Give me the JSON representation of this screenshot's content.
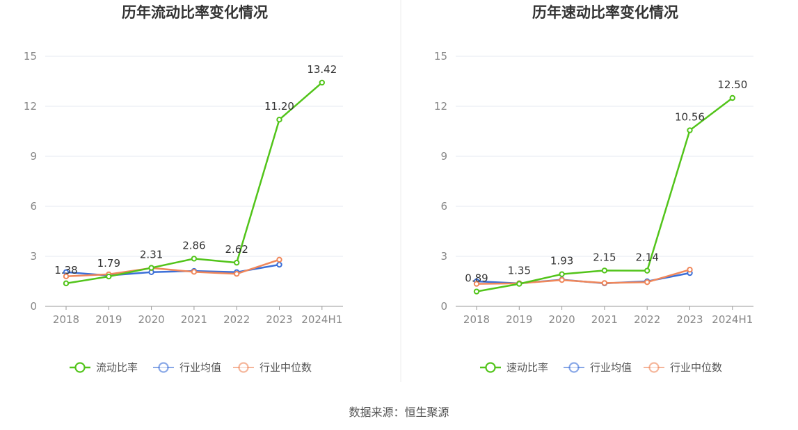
{
  "chart_data": [
    {
      "type": "line",
      "title": "历年流动比率变化情况",
      "categories": [
        "2018",
        "2019",
        "2020",
        "2021",
        "2022",
        "2023",
        "2024H1"
      ],
      "ylim": [
        0,
        15
      ],
      "yticks": [
        0,
        3,
        6,
        9,
        12,
        15
      ],
      "grid": true,
      "legend_position": "bottom",
      "series": [
        {
          "name": "流动比率",
          "color": "#52c41a",
          "values": [
            1.38,
            1.79,
            2.31,
            2.86,
            2.62,
            11.2,
            13.42
          ],
          "labels": [
            "1.38",
            "1.79",
            "2.31",
            "2.86",
            "2.62",
            "11.20",
            "13.42"
          ]
        },
        {
          "name": "行业均值",
          "color": "#3b6fd8",
          "values": [
            2.05,
            1.85,
            2.05,
            2.12,
            2.05,
            2.5,
            null
          ]
        },
        {
          "name": "行业中位数",
          "color": "#f0875a",
          "values": [
            1.8,
            1.92,
            2.3,
            2.07,
            1.95,
            2.8,
            null
          ]
        }
      ]
    },
    {
      "type": "line",
      "title": "历年速动比率变化情况",
      "categories": [
        "2018",
        "2019",
        "2020",
        "2021",
        "2022",
        "2023",
        "2024H1"
      ],
      "ylim": [
        0,
        15
      ],
      "yticks": [
        0,
        3,
        6,
        9,
        12,
        15
      ],
      "grid": true,
      "legend_position": "bottom",
      "series": [
        {
          "name": "速动比率",
          "color": "#52c41a",
          "values": [
            0.89,
            1.35,
            1.93,
            2.15,
            2.14,
            10.56,
            12.5
          ],
          "labels": [
            "0.89",
            "1.35",
            "1.93",
            "2.15",
            "2.14",
            "10.56",
            "12.50"
          ]
        },
        {
          "name": "行业均值",
          "color": "#3b6fd8",
          "values": [
            1.5,
            1.38,
            1.6,
            1.38,
            1.5,
            2.0,
            null
          ]
        },
        {
          "name": "行业中位数",
          "color": "#f0875a",
          "values": [
            1.35,
            1.38,
            1.58,
            1.4,
            1.45,
            2.2,
            null
          ]
        }
      ]
    }
  ],
  "footer": {
    "source": "数据来源：恒生聚源"
  }
}
